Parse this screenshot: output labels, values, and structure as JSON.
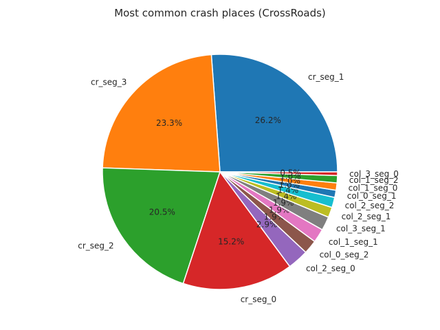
{
  "chart_data": {
    "type": "pie",
    "title": "Most common crash places (CrossRoads)",
    "start_angle_deg": 0,
    "direction": "counterclockwise",
    "slices": [
      {
        "label": "cr_seg_1",
        "value": 26.2,
        "pct_label": "26.2%",
        "color": "#1f77b4"
      },
      {
        "label": "cr_seg_3",
        "value": 23.3,
        "pct_label": "23.3%",
        "color": "#ff7f0e"
      },
      {
        "label": "cr_seg_2",
        "value": 20.5,
        "pct_label": "20.5%",
        "color": "#2ca02c"
      },
      {
        "label": "cr_seg_0",
        "value": 15.2,
        "pct_label": "15.2%",
        "color": "#d62728"
      },
      {
        "label": "col_2_seg_0",
        "value": 2.9,
        "pct_label": "2.9%",
        "color": "#9467bd"
      },
      {
        "label": "col_0_seg_2",
        "value": 1.9,
        "pct_label": "1.9%",
        "color": "#8c564b"
      },
      {
        "label": "col_1_seg_1",
        "value": 1.9,
        "pct_label": "1.9%",
        "color": "#e377c2"
      },
      {
        "label": "col_3_seg_1",
        "value": 1.9,
        "pct_label": "1.9%",
        "color": "#7f7f7f"
      },
      {
        "label": "col_2_seg_1",
        "value": 1.4,
        "pct_label": "1.4%",
        "color": "#bcbd22"
      },
      {
        "label": "col_2_seg_2",
        "value": 1.4,
        "pct_label": "1.4%",
        "color": "#17becf"
      },
      {
        "label": "col_0_seg_1",
        "value": 1.0,
        "pct_label": "1.0%",
        "color": "#1f77b4"
      },
      {
        "label": "col_1_seg_0",
        "value": 1.0,
        "pct_label": "1.0%",
        "color": "#ff7f0e"
      },
      {
        "label": "col_1_seg_2",
        "value": 1.0,
        "pct_label": "1.0%",
        "color": "#2ca02c"
      },
      {
        "label": "col_3_seg_0",
        "value": 0.5,
        "pct_label": "0.5%",
        "color": "#d62728"
      }
    ]
  }
}
